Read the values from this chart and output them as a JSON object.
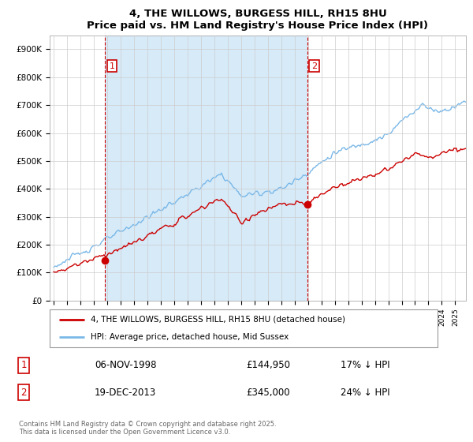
{
  "title": "4, THE WILLOWS, BURGESS HILL, RH15 8HU",
  "subtitle": "Price paid vs. HM Land Registry's House Price Index (HPI)",
  "legend_line1": "4, THE WILLOWS, BURGESS HILL, RH15 8HU (detached house)",
  "legend_line2": "HPI: Average price, detached house, Mid Sussex",
  "footer": "Contains HM Land Registry data © Crown copyright and database right 2025.\nThis data is licensed under the Open Government Licence v3.0.",
  "annotation1_label": "1",
  "annotation1_date": "06-NOV-1998",
  "annotation1_price": "£144,950",
  "annotation1_hpi": "17% ↓ HPI",
  "annotation2_label": "2",
  "annotation2_date": "19-DEC-2013",
  "annotation2_price": "£345,000",
  "annotation2_hpi": "24% ↓ HPI",
  "hpi_color": "#7ab8e8",
  "hpi_fill_color": "#d6eaf8",
  "price_color": "#cc0000",
  "annotation_color": "#cc0000",
  "background_color": "#ffffff",
  "grid_color": "#cccccc",
  "ylim": [
    0,
    950000
  ],
  "yticks": [
    0,
    100000,
    200000,
    300000,
    400000,
    500000,
    600000,
    700000,
    800000,
    900000
  ],
  "ytick_labels": [
    "£0",
    "£100K",
    "£200K",
    "£300K",
    "£400K",
    "£500K",
    "£600K",
    "£700K",
    "£800K",
    "£900K"
  ],
  "year_start": 1995,
  "year_end": 2025,
  "purchase1_year": 1998.85,
  "purchase1_price": 144950,
  "purchase2_year": 2013.96,
  "purchase2_price": 345000,
  "vline1_year": 1998.85,
  "vline2_year": 2013.96
}
